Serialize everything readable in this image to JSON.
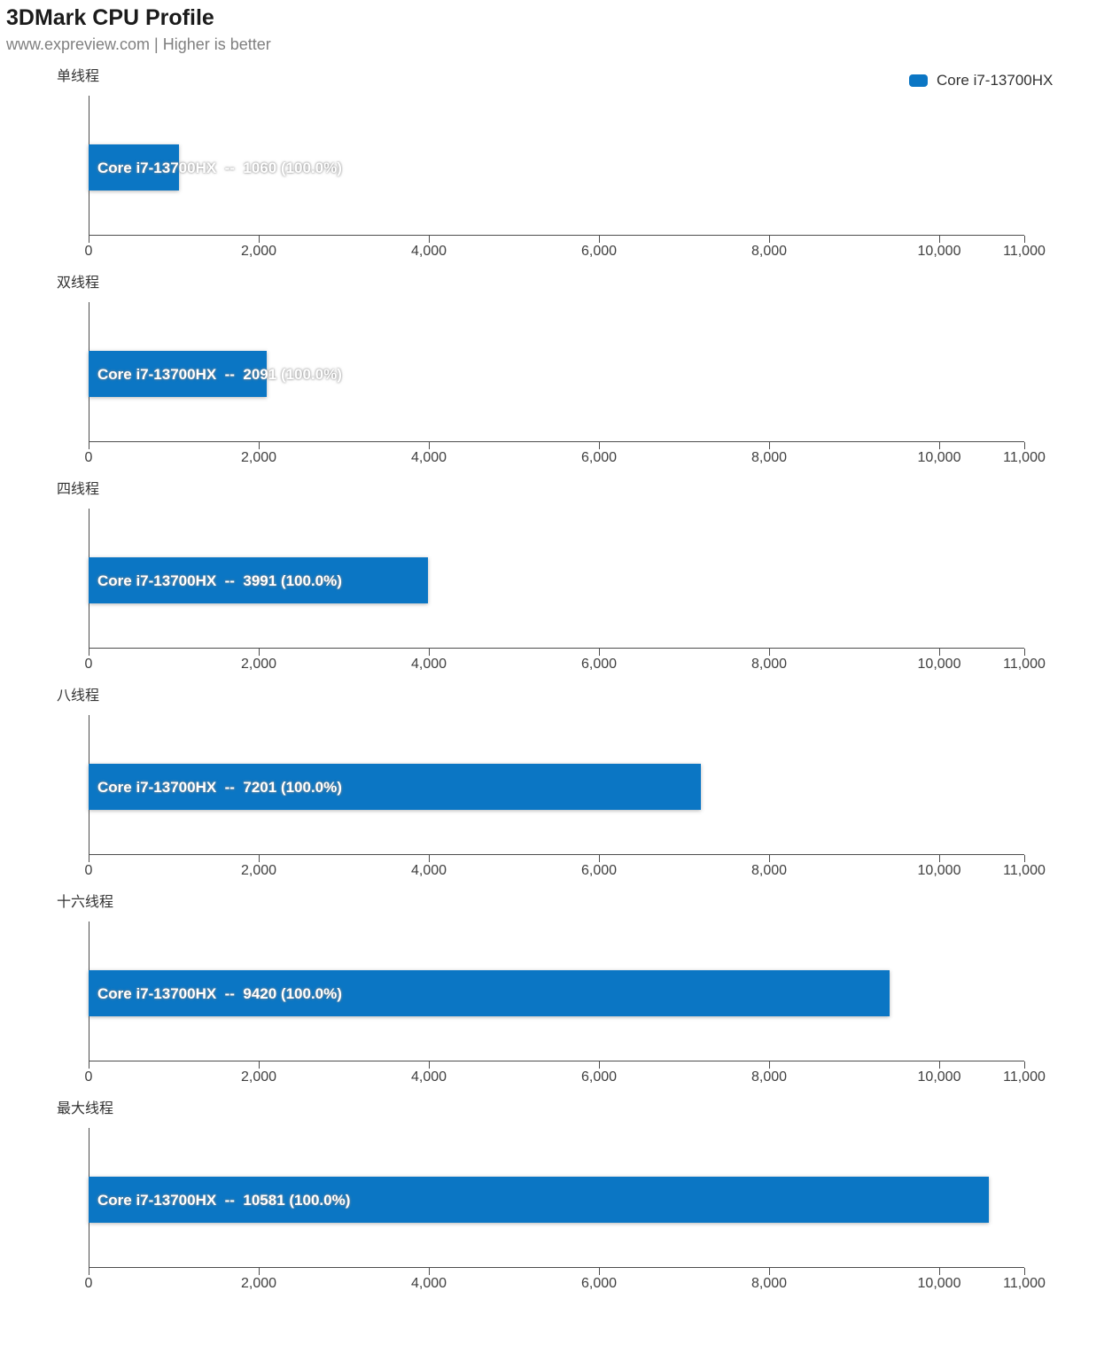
{
  "header": {
    "title": "3DMark CPU Profile",
    "subtitle": "www.expreview.com | Higher is better"
  },
  "legend": {
    "label": "Core i7-13700HX",
    "color": "#0b76c4"
  },
  "chart_data": {
    "type": "bar",
    "orientation": "horizontal",
    "title": "3DMark CPU Profile",
    "subtitle": "www.expreview.com | Higher is better",
    "legend": [
      "Core i7-13700HX"
    ],
    "legend_position": "top-right",
    "bar_color": "#0b76c4",
    "grid": false,
    "xlim": [
      0,
      11000
    ],
    "x_ticks": [
      0,
      2000,
      4000,
      6000,
      8000,
      10000,
      11000
    ],
    "x_tick_labels": [
      "0",
      "2,000",
      "4,000",
      "6,000",
      "8,000",
      "10,000",
      "11,000"
    ],
    "groups": [
      {
        "label": "单线程",
        "series": "Core i7-13700HX",
        "value": 1060,
        "percent": 100.0,
        "bar_text": "Core i7-13700HX  --  1060 (100.0%)"
      },
      {
        "label": "双线程",
        "series": "Core i7-13700HX",
        "value": 2091,
        "percent": 100.0,
        "bar_text": "Core i7-13700HX  --  2091 (100.0%)"
      },
      {
        "label": "四线程",
        "series": "Core i7-13700HX",
        "value": 3991,
        "percent": 100.0,
        "bar_text": "Core i7-13700HX  --  3991 (100.0%)"
      },
      {
        "label": "八线程",
        "series": "Core i7-13700HX",
        "value": 7201,
        "percent": 100.0,
        "bar_text": "Core i7-13700HX  --  7201 (100.0%)"
      },
      {
        "label": "十六线程",
        "series": "Core i7-13700HX",
        "value": 9420,
        "percent": 100.0,
        "bar_text": "Core i7-13700HX  --  9420 (100.0%)"
      },
      {
        "label": "最大线程",
        "series": "Core i7-13700HX",
        "value": 10581,
        "percent": 100.0,
        "bar_text": "Core i7-13700HX  --  10581 (100.0%)"
      }
    ]
  }
}
